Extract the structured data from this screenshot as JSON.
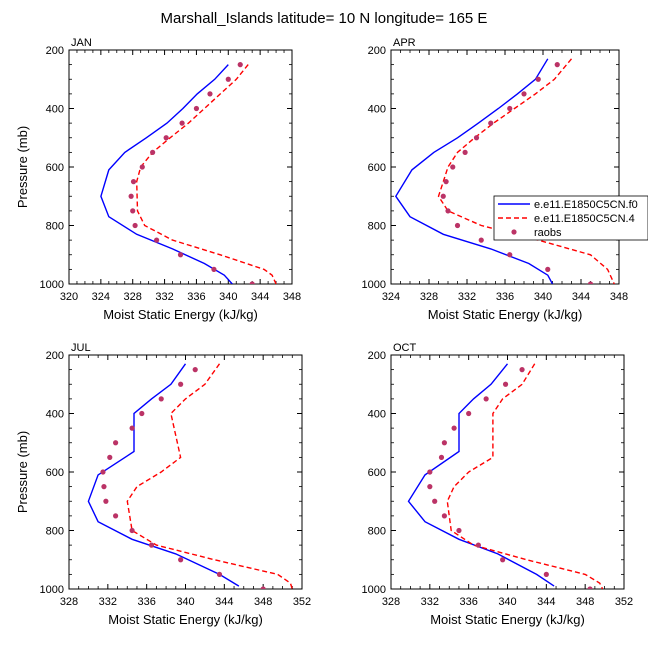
{
  "figure": {
    "title": "Marshall_Islands  latitude= 10 N longitude= 165 E"
  },
  "legend": {
    "entries": [
      {
        "label": "e.e11.E1850C5CN.f0",
        "style": "solid",
        "color": "#0000ff"
      },
      {
        "label": "e.e11.E1850C5CN.4",
        "style": "dashed",
        "color": "#ff0000"
      },
      {
        "label": "raobs",
        "style": "marker",
        "color": "#bb3366"
      }
    ]
  },
  "colors": {
    "model1": "#0000ff",
    "model2": "#ff0000",
    "raobs": "#bb3366"
  },
  "chart_data": [
    {
      "type": "line",
      "title": "JAN",
      "xlabel": "Moist Static Energy (kJ/kg)",
      "ylabel": "Pressure (mb)",
      "xlim": [
        320,
        348
      ],
      "ylim": [
        1000,
        200
      ],
      "xticks": [
        "320",
        "324",
        "328",
        "332",
        "336",
        "340",
        "344",
        "348"
      ],
      "yticks": [
        "200",
        "400",
        "600",
        "800",
        "1000"
      ],
      "series": [
        {
          "name": "e.e11.E1850C5CN.f0",
          "style": "solid",
          "x": [
            340.0,
            338.3,
            336.1,
            334.3,
            332.3,
            329.7,
            327.0,
            325.0,
            324.0,
            325.0,
            328.5,
            333.0,
            337.0,
            339.5,
            340.5
          ],
          "y": [
            250,
            300,
            350,
            400,
            450,
            500,
            550,
            610,
            700,
            770,
            830,
            880,
            930,
            970,
            1000
          ]
        },
        {
          "name": "e.e11.E1850C5CN.4",
          "style": "dashed",
          "x": [
            342.5,
            341.0,
            339.0,
            337.0,
            335.0,
            332.7,
            330.5,
            329.0,
            328.5,
            328.6,
            329.5,
            333.0,
            339.0,
            344.5,
            345.5,
            346.0
          ],
          "y": [
            250,
            300,
            350,
            400,
            450,
            500,
            550,
            600,
            650,
            750,
            800,
            850,
            900,
            950,
            970,
            1000
          ]
        },
        {
          "name": "raobs",
          "style": "marker",
          "x": [
            341.5,
            340.0,
            337.7,
            336.0,
            334.2,
            332.2,
            330.5,
            329.2,
            328.1,
            327.8,
            328.0,
            328.3,
            331.0,
            334.0,
            338.2,
            343.0
          ],
          "y": [
            250,
            300,
            350,
            400,
            450,
            500,
            550,
            600,
            650,
            700,
            750,
            800,
            850,
            900,
            950,
            1000
          ]
        }
      ]
    },
    {
      "type": "line",
      "title": "APR",
      "xlabel": "Moist Static Energy (kJ/kg)",
      "ylabel": "",
      "xlim": [
        324,
        348
      ],
      "ylim": [
        1000,
        200
      ],
      "xticks": [
        "324",
        "328",
        "332",
        "336",
        "340",
        "344",
        "348"
      ],
      "yticks": [
        "200",
        "400",
        "600",
        "800",
        "1000"
      ],
      "series": [
        {
          "name": "e.e11.E1850C5CN.f0",
          "style": "solid",
          "x": [
            340.5,
            339.2,
            337.3,
            335.3,
            333.2,
            331.0,
            328.5,
            326.2,
            324.5,
            326.0,
            329.5,
            334.5,
            338.5,
            340.5,
            341.0
          ],
          "y": [
            230,
            300,
            350,
            400,
            450,
            500,
            550,
            610,
            700,
            770,
            830,
            880,
            930,
            970,
            1000
          ]
        },
        {
          "name": "e.e11.E1850C5CN.4",
          "style": "dashed",
          "x": [
            343.0,
            341.2,
            339.2,
            337.0,
            334.8,
            332.8,
            331.0,
            330.0,
            329.5,
            329.0,
            330.0,
            333.5,
            339.5,
            345.0,
            346.8,
            347.5
          ],
          "y": [
            230,
            300,
            350,
            400,
            450,
            500,
            550,
            600,
            650,
            700,
            750,
            800,
            850,
            900,
            950,
            1000
          ]
        },
        {
          "name": "raobs",
          "style": "marker",
          "x": [
            341.5,
            339.5,
            338.0,
            336.5,
            334.5,
            333.0,
            331.8,
            330.5,
            329.8,
            329.5,
            330.0,
            331.0,
            333.5,
            336.5,
            340.5,
            345.0
          ],
          "y": [
            250,
            300,
            350,
            400,
            450,
            500,
            550,
            600,
            650,
            700,
            750,
            800,
            850,
            900,
            950,
            1000
          ]
        }
      ]
    },
    {
      "type": "line",
      "title": "JUL",
      "xlabel": "Moist Static Energy (kJ/kg)",
      "ylabel": "Pressure (mb)",
      "xlim": [
        328,
        352
      ],
      "ylim": [
        1000,
        200
      ],
      "xticks": [
        "328",
        "332",
        "336",
        "340",
        "344",
        "348",
        "352"
      ],
      "yticks": [
        "200",
        "400",
        "600",
        "800",
        "1000"
      ],
      "series": [
        {
          "name": "e.e11.E1850C5CN.f0",
          "style": "solid",
          "x": [
            340.0,
            338.5,
            336.5,
            334.7,
            334.7,
            331.0,
            330.0,
            331.0,
            334.5,
            339.0,
            343.5,
            345.5
          ],
          "y": [
            230,
            300,
            350,
            400,
            530,
            610,
            700,
            770,
            830,
            880,
            950,
            990
          ]
        },
        {
          "name": "e.e11.E1850C5CN.4",
          "style": "dashed",
          "x": [
            343.5,
            342.0,
            340.0,
            338.5,
            339.5,
            337.5,
            335.0,
            334.0,
            334.5,
            337.0,
            343.0,
            349.5,
            350.8,
            351.0
          ],
          "y": [
            230,
            300,
            350,
            400,
            550,
            600,
            650,
            700,
            800,
            850,
            900,
            950,
            980,
            1000
          ]
        },
        {
          "name": "raobs",
          "style": "marker",
          "x": [
            341.0,
            339.5,
            337.5,
            335.5,
            334.5,
            332.8,
            332.2,
            331.5,
            331.6,
            331.8,
            332.8,
            334.5,
            336.5,
            339.5,
            343.5,
            348.0
          ],
          "y": [
            250,
            300,
            350,
            400,
            450,
            500,
            550,
            600,
            650,
            700,
            750,
            800,
            850,
            900,
            950,
            1000
          ]
        }
      ]
    },
    {
      "type": "line",
      "title": "OCT",
      "xlabel": "Moist Static Energy (kJ/kg)",
      "ylabel": "",
      "xlim": [
        328,
        352
      ],
      "ylim": [
        1000,
        200
      ],
      "xticks": [
        "328",
        "332",
        "336",
        "340",
        "344",
        "348",
        "352"
      ],
      "yticks": [
        "200",
        "400",
        "600",
        "800",
        "1000"
      ],
      "series": [
        {
          "name": "e.e11.E1850C5CN.f0",
          "style": "solid",
          "x": [
            340.0,
            338.3,
            336.5,
            335.0,
            335.0,
            331.5,
            329.8,
            331.5,
            335.0,
            339.0,
            343.0,
            344.8
          ],
          "y": [
            230,
            300,
            350,
            400,
            530,
            610,
            700,
            770,
            830,
            880,
            950,
            990
          ]
        },
        {
          "name": "e.e11.E1850C5CN.4",
          "style": "dashed",
          "x": [
            342.8,
            341.5,
            339.5,
            338.5,
            338.5,
            336.0,
            334.5,
            333.8,
            334.2,
            336.5,
            342.0,
            348.0,
            349.5,
            349.8
          ],
          "y": [
            230,
            300,
            350,
            400,
            550,
            600,
            650,
            700,
            800,
            850,
            900,
            950,
            980,
            1000
          ]
        },
        {
          "name": "raobs",
          "style": "marker",
          "x": [
            341.5,
            339.8,
            337.8,
            336.0,
            334.5,
            333.5,
            333.2,
            332.0,
            332.0,
            332.5,
            333.5,
            335.0,
            337.0,
            339.5,
            344.0,
            348.5
          ],
          "y": [
            250,
            300,
            350,
            400,
            450,
            500,
            550,
            600,
            650,
            700,
            750,
            800,
            850,
            900,
            950,
            1000
          ]
        }
      ]
    }
  ]
}
